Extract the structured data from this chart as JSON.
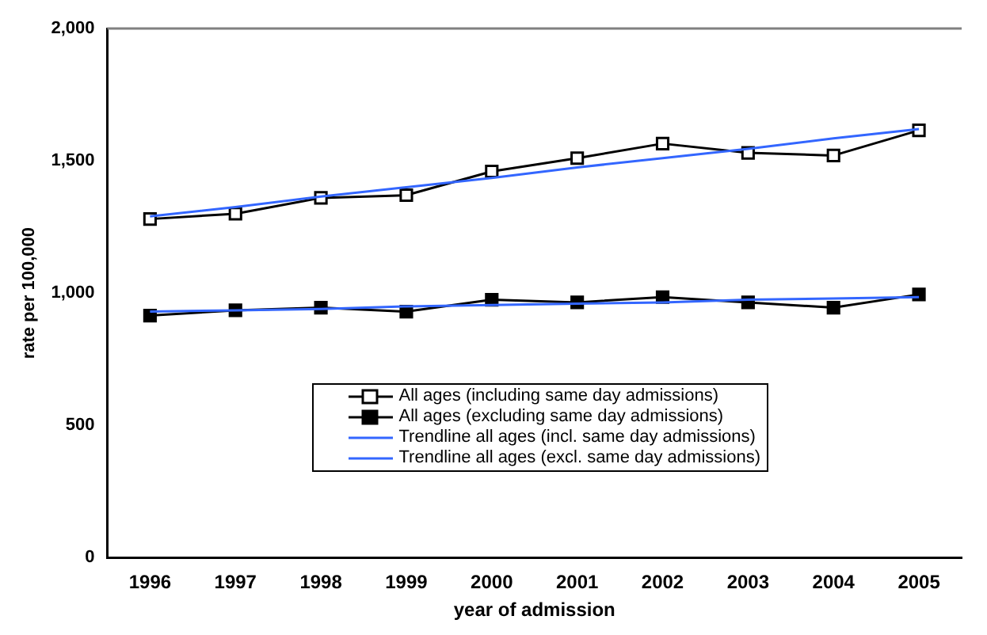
{
  "chart_data": {
    "type": "line",
    "xlabel": "year of admission",
    "ylabel": "rate per 100,000",
    "categories": [
      "1996",
      "1997",
      "1998",
      "1999",
      "2000",
      "2001",
      "2002",
      "2003",
      "2004",
      "2005"
    ],
    "series": [
      {
        "name": "All ages (including same day admissions)",
        "color": "#000000",
        "marker": "square",
        "values": [
          1280,
          1300,
          1360,
          1370,
          1460,
          1510,
          1565,
          1530,
          1520,
          1615
        ]
      },
      {
        "name": "All ages (excluding same day admissions)",
        "color": "#000000",
        "marker": "square",
        "values": [
          915,
          935,
          945,
          930,
          975,
          965,
          985,
          965,
          945,
          995
        ]
      },
      {
        "name": "Trendline all ages (incl. same day admissions)",
        "color": "#3366ff",
        "marker": "none",
        "values": [
          1290,
          1325,
          1365,
          1400,
          1435,
          1475,
          1510,
          1545,
          1585,
          1620
        ]
      },
      {
        "name": "Trendline all ages (excl. same day admissions)",
        "color": "#3366ff",
        "marker": "none",
        "values": [
          930,
          935,
          940,
          950,
          955,
          960,
          965,
          975,
          980,
          985
        ]
      }
    ],
    "ylim": [
      0,
      2000
    ],
    "yticks": [
      {
        "value": 0,
        "label": "0"
      },
      {
        "value": 500,
        "label": "500"
      },
      {
        "value": 1000,
        "label": "1,000"
      },
      {
        "value": 1500,
        "label": "1,500"
      },
      {
        "value": 2000,
        "label": "2,000"
      }
    ],
    "grid": false,
    "legend": "bottom right",
    "line_style": "solid"
  }
}
